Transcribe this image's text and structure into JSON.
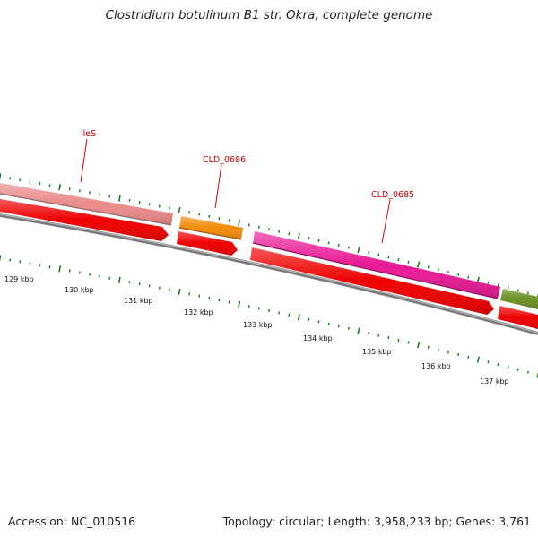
{
  "title": "Clostridium botulinum B1 str. Okra, complete genome",
  "footer": {
    "accession": "Accession: NC_010516",
    "summary": "Topology: circular; Length: 3,958,233 bp; Genes: 3,761"
  },
  "colors": {
    "backbone": "#7a7a7a",
    "tick": "#1a7a1a",
    "cds": "#ee0000",
    "label": "#cc0000",
    "ileS": "#e98a8a",
    "CLD_0686": "#f28c0a",
    "CLD_0685": "#e81a95",
    "next_gene": "#6b8e23"
  },
  "scale_labels": [
    "129 kbp",
    "130 kbp",
    "131 kbp",
    "132 kbp",
    "133 kbp",
    "134 kbp",
    "135 kbp",
    "136 kbp",
    "137 kbp"
  ],
  "genes": [
    {
      "name": "ileS",
      "color_key": "ileS"
    },
    {
      "name": "CLD_0686",
      "color_key": "CLD_0686"
    },
    {
      "name": "CLD_0685",
      "color_key": "CLD_0685"
    },
    {
      "name": "",
      "color_key": "next_gene"
    }
  ]
}
